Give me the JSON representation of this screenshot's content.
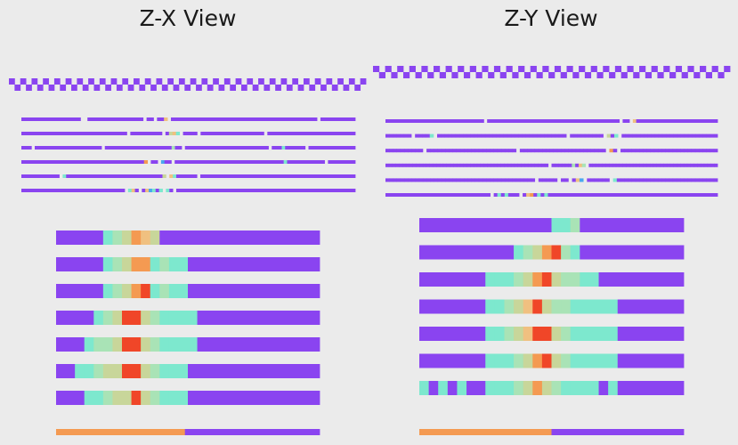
{
  "titles": {
    "left": "Z-X View",
    "right": "Z-Y View"
  },
  "colors": {
    "p": "#8a44f0",
    "c": "#7de8ce",
    "b": "#a9e3b6",
    "g": "#c8d69a",
    "y": "#f0c080",
    "o": "#f49a52",
    "r": "#f04628",
    "k": "#e43818",
    "f": "#4aa8ee",
    "background": "#ebebeb"
  },
  "views": [
    {
      "name": "Z-X View",
      "top_strip": "ppppp ppp ppppp pppppp ppppppp p pppp pppppp ppp pppppp pppp pp",
      "fine_rows": [
        "ppppppppppppppppp  pppppppppppppppp pp ppy pppppppppppppppppppppppppppppppppppppppppp pppppppppp",
        "pppppppppppppppppppppppppppppp ppppppppp pgyc pppp pppppppppppppppppp ppppppppppppppppppppppppp",
        "ppp pppppppppppppppppppp ppppppppppppppppppppbpp ppppppppppppppppppppppppp pppcpppppp pppppppppppppp",
        "ppppppppppppppppppppppppppppppppppppo pp fpp ppppppppppppppppppppppppppppppppcppppppppppp pppppppp",
        "ppppppppppp cppppppppppppppppppppppppppppg ycpppppp ppppppppppppppppppppppppppppppppppppppppppppp",
        "pppppppppppppppppppppppppppppp cyp pyfcpc cp pppppppppppppppppppppppppppppppppppppppppppppppppppp"
      ],
      "bars": [
        "pppppcbgoygppppppppppppppppp",
        "pppppcbgoocbccpppppppppppppp",
        "pppppcbgorcbccpppppppppppppp",
        "ppppcbgrrgbccccppppppppppppp",
        "pppcbbgrrgbccccppppppppppppp",
        "ppccbggrrgbcccpppppppppppppp",
        "pppccbggrgbcccpppppppppppppp"
      ],
      "bottom_bar": "oooooooooooooooooooooooooooooooooooooooooooopppppppppppppppppppppppppppppppppppppppppppppp"
    },
    {
      "name": "Z-Y View",
      "top_strip": "ppp ppppppp pp pppp pp ppppp pppppp pp ppppp ppppppp pppp p",
      "fine_rows": [
        "ppppppppppppppppppppppppppppp ppppppppppppppppppppppppppppppppppppppp pp ypppppppppppppppppppppppp",
        "ppppppp ppppc ppppppppppppppppppppppppppppppppppp ppppppppp gpc pppppppppppppppppppppppppp",
        "pppppppppp pppppppppppppppppppppppp ppppppppppppppppppppppp op pppppppppppppppppppppppppp",
        "pppppppppppppppppppppppppppppppppppppppppppppppp ppppppbpyb pppppppppppppppppppppppppppppppppppppp",
        "pppppppppppppppppppppppppppppppppppppppp ppppp pp pyf pppppp cppppppppppppppppppppppppppp",
        "ppppppppppppppppppppppppppppp pcpcppp pyopcpcppppppppppppppppppppppppppppppppppppppppppppppp"
      ],
      "bars": [
        "ppppppppppppppccbppppppppppp",
        "ppppppppppcbgorbcppppppppppp",
        "pppppppcccbgorgbbccppppppppp",
        "pppppppccbgyrgbbcccccppppppp",
        "pppppppccbgyrrgbcccccppppppp",
        "pppppppcccbgorgbcccccppppppp",
        "cpcpcppcccbgogbccccpcppppppp"
      ],
      "bottom_bar": "oooooooooooooooooooooooooooooooooooooooooooooppppppppppppppppppppppppppppppppppppppppppppp"
    }
  ]
}
